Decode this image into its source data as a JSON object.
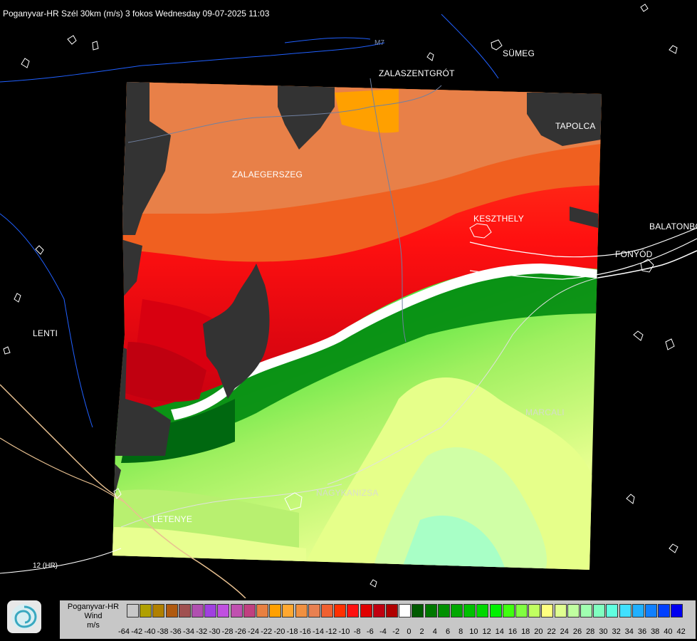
{
  "title": "Poganyvar-HR Szél 30km (m/s) 3 fokos Wednesday 09-07-2025 11:03",
  "cities": {
    "sumeg": "SÜMEG",
    "zalaszentgrot": "ZALASZENTGRÓT",
    "tapolca": "TAPOLCA",
    "zalaegerszeg": "ZALAEGERSZEG",
    "keszthely": "KESZTHELY",
    "balatonboglar": "BALATONBO",
    "fonyod": "FONYÓD",
    "lenti": "LENTI",
    "marcali": "MARCALI",
    "nagykanizsa": "NAGYKANIZSA",
    "letenye": "LETENYE"
  },
  "roads": {
    "m7": "M7",
    "h12": "12 (HR)"
  },
  "legend": {
    "name_line1": "Poganyvar-HR",
    "name_line2": "Wind",
    "unit": "m/s",
    "ticks": [
      "-64",
      "-42",
      "-40",
      "-38",
      "-36",
      "-34",
      "-32",
      "-30",
      "-28",
      "-26",
      "-24",
      "-22",
      "-20",
      "-18",
      "-16",
      "-14",
      "-12",
      "-10",
      "-8",
      "-6",
      "-4",
      "-2",
      "0",
      "2",
      "4",
      "6",
      "8",
      "10",
      "12",
      "14",
      "16",
      "18",
      "20",
      "22",
      "24",
      "26",
      "28",
      "30",
      "32",
      "34",
      "36",
      "38",
      "40",
      "42"
    ],
    "colors": [
      "#c8c8c8",
      "#b0a000",
      "#b08000",
      "#b05a10",
      "#a05050",
      "#b050b0",
      "#a040e0",
      "#c050e0",
      "#c050b0",
      "#c04080",
      "#e88040",
      "#ffa000",
      "#ffa830",
      "#f09040",
      "#e88050",
      "#f06030",
      "#ff3000",
      "#ff1010",
      "#e00000",
      "#c00010",
      "#b00000",
      "#ffffff",
      "#005a00",
      "#007800",
      "#009000",
      "#00a800",
      "#00c000",
      "#00d800",
      "#00f000",
      "#40ff10",
      "#80ff40",
      "#c0ff60",
      "#ffff80",
      "#e0ff90",
      "#c0ffa0",
      "#a0ffb0",
      "#80ffc0",
      "#60ffe0",
      "#40e0ff",
      "#20b0ff",
      "#1080ff",
      "#0040ff",
      "#0000f0"
    ]
  },
  "status_colors": {
    "background": "#000000",
    "no_data": "#333333"
  }
}
